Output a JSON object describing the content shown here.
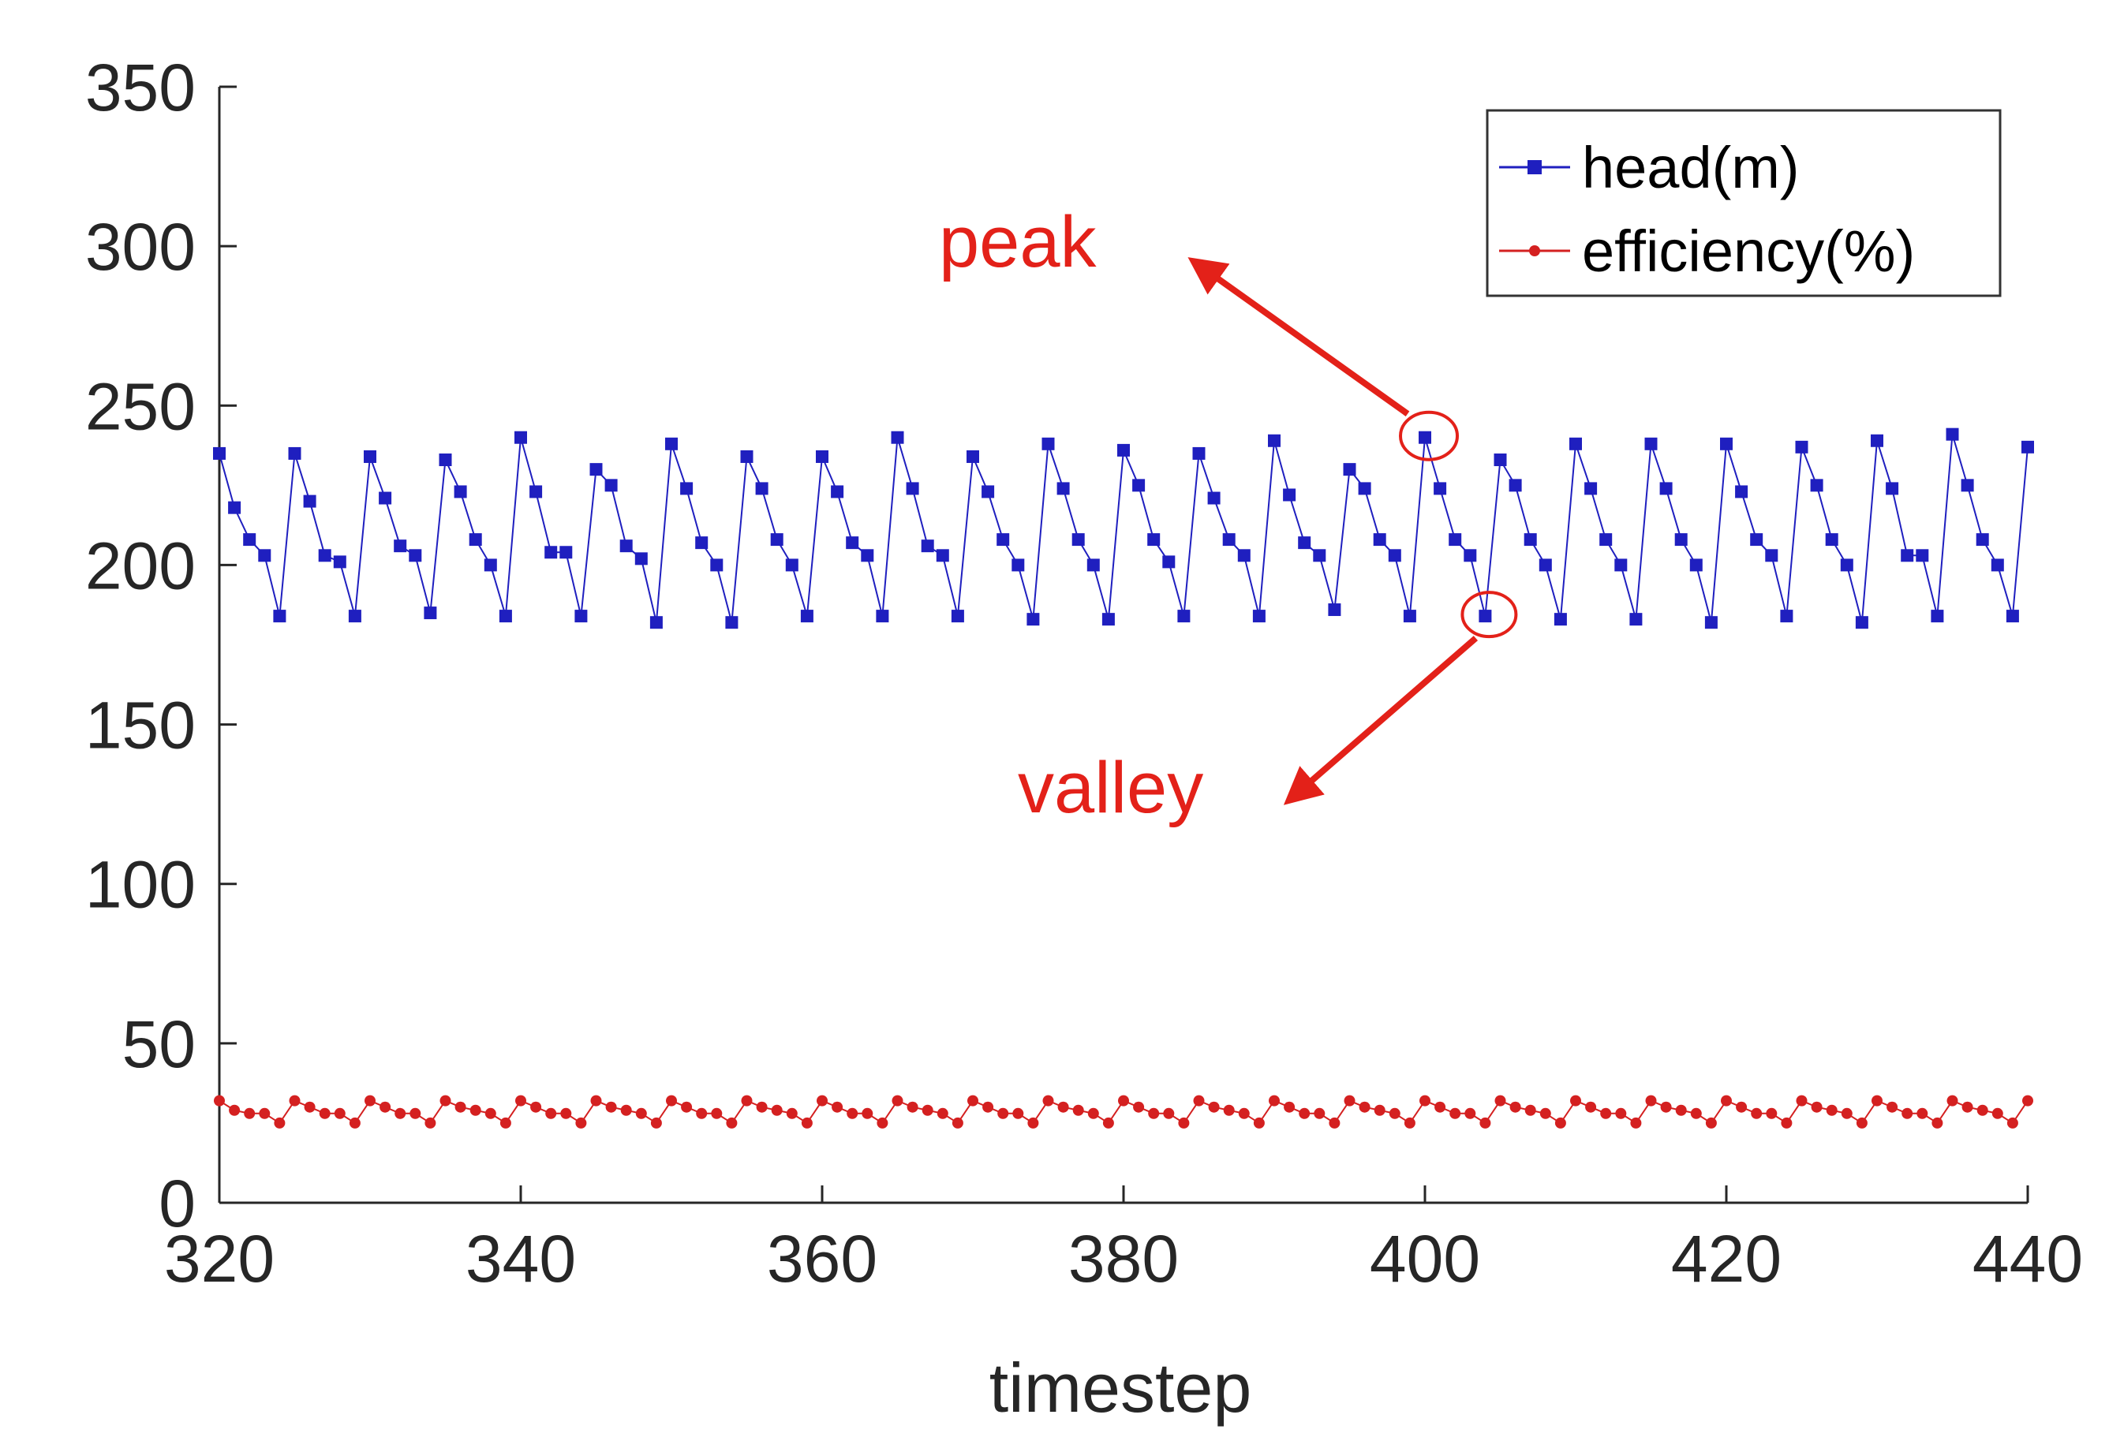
{
  "chart_data": {
    "type": "line",
    "title": "",
    "xlabel": "timestep",
    "ylabel": "",
    "xlim": [
      320,
      440
    ],
    "ylim": [
      0,
      350
    ],
    "xticks": [
      "320",
      "340",
      "360",
      "380",
      "400",
      "420",
      "440"
    ],
    "yticks": [
      "0",
      "50",
      "100",
      "150",
      "200",
      "250",
      "300",
      "350"
    ],
    "grid": false,
    "legend_position": "top-right",
    "colors": {
      "head": "#1f1fbf",
      "efficiency": "#d42020",
      "annotation": "#e32119"
    },
    "x": [
      320,
      321,
      322,
      323,
      324,
      325,
      326,
      327,
      328,
      329,
      330,
      331,
      332,
      333,
      334,
      335,
      336,
      337,
      338,
      339,
      340,
      341,
      342,
      343,
      344,
      345,
      346,
      347,
      348,
      349,
      350,
      351,
      352,
      353,
      354,
      355,
      356,
      357,
      358,
      359,
      360,
      361,
      362,
      363,
      364,
      365,
      366,
      367,
      368,
      369,
      370,
      371,
      372,
      373,
      374,
      375,
      376,
      377,
      378,
      379,
      380,
      381,
      382,
      383,
      384,
      385,
      386,
      387,
      388,
      389,
      390,
      391,
      392,
      393,
      394,
      395,
      396,
      397,
      398,
      399,
      400,
      401,
      402,
      403,
      404,
      405,
      406,
      407,
      408,
      409,
      410,
      411,
      412,
      413,
      414,
      415,
      416,
      417,
      418,
      419,
      420,
      421,
      422,
      423,
      424,
      425,
      426,
      427,
      428,
      429,
      430,
      431,
      432,
      433,
      434,
      435,
      436,
      437,
      438,
      439,
      440
    ],
    "series": [
      {
        "name": "head(m)",
        "marker": "square",
        "values": [
          235,
          218,
          208,
          203,
          184,
          235,
          220,
          203,
          201,
          184,
          234,
          221,
          206,
          203,
          185,
          233,
          223,
          208,
          200,
          184,
          240,
          223,
          204,
          204,
          184,
          230,
          225,
          206,
          202,
          182,
          238,
          224,
          207,
          200,
          182,
          234,
          224,
          208,
          200,
          184,
          234,
          223,
          207,
          203,
          184,
          240,
          224,
          206,
          203,
          184,
          234,
          223,
          208,
          200,
          183,
          238,
          224,
          208,
          200,
          183,
          236,
          225,
          208,
          201,
          184,
          235,
          221,
          208,
          203,
          184,
          239,
          222,
          207,
          203,
          186,
          230,
          224,
          208,
          203,
          184,
          240,
          224,
          208,
          203,
          184,
          233,
          225,
          208,
          200,
          183,
          238,
          224,
          208,
          200,
          183,
          238,
          224,
          208,
          200,
          182,
          238,
          223,
          208,
          203,
          184,
          237,
          225,
          208,
          200,
          182,
          239,
          224,
          203,
          203,
          184,
          241,
          225,
          208,
          200,
          184,
          237
        ]
      },
      {
        "name": "efficiency(%)",
        "marker": "dot",
        "values": [
          32,
          29,
          28,
          28,
          25,
          32,
          30,
          28,
          28,
          25,
          32,
          30,
          28,
          28,
          25,
          32,
          30,
          29,
          28,
          25,
          32,
          30,
          28,
          28,
          25,
          32,
          30,
          29,
          28,
          25,
          32,
          30,
          28,
          28,
          25,
          32,
          30,
          29,
          28,
          25,
          32,
          30,
          28,
          28,
          25,
          32,
          30,
          29,
          28,
          25,
          32,
          30,
          28,
          28,
          25,
          32,
          30,
          29,
          28,
          25,
          32,
          30,
          28,
          28,
          25,
          32,
          30,
          29,
          28,
          25,
          32,
          30,
          28,
          28,
          25,
          32,
          30,
          29,
          28,
          25,
          32,
          30,
          28,
          28,
          25,
          32,
          30,
          29,
          28,
          25,
          32,
          30,
          28,
          28,
          25,
          32,
          30,
          29,
          28,
          25,
          32,
          30,
          28,
          28,
          25,
          32,
          30,
          29,
          28,
          25,
          32,
          30,
          28,
          28,
          25,
          32,
          30,
          29,
          28,
          25,
          32
        ]
      }
    ],
    "annotations": [
      {
        "text": "peak",
        "x": 400,
        "y": 240
      },
      {
        "text": "valley",
        "x": 404,
        "y": 184
      }
    ]
  }
}
